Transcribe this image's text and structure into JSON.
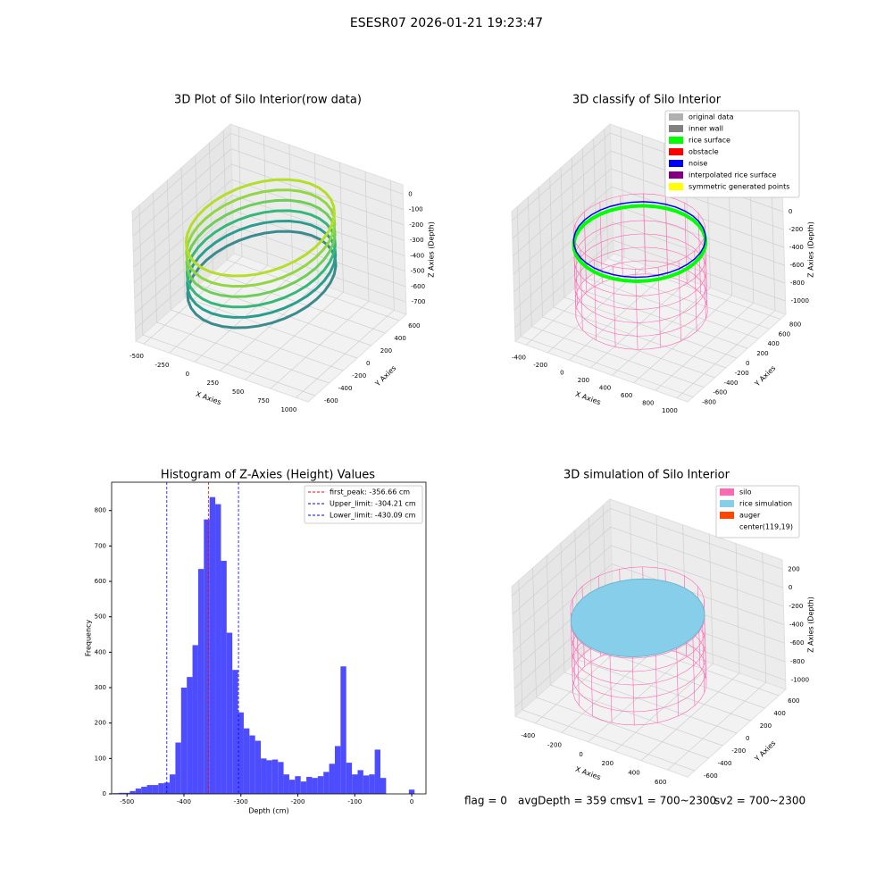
{
  "title": "ESESR07 2026-01-21 19:23:47",
  "chart_data": [
    {
      "type": "scatter3d",
      "title": "3D Plot of Silo Interior(row data)",
      "xlabel": "X Axies",
      "ylabel": "Y Axies",
      "zlabel": "Z Axies (Depth)",
      "xlim": [
        -580,
        1120
      ],
      "ylim": [
        -700,
        700
      ],
      "zlim": [
        -780,
        60
      ],
      "xticks": [
        -500,
        -250,
        0,
        250,
        500,
        750,
        1000
      ],
      "yticks": [
        -600,
        -400,
        -200,
        0,
        200,
        400,
        600
      ],
      "zticks": [
        -700,
        -600,
        -500,
        -400,
        -300,
        -200,
        -100,
        0
      ]
    },
    {
      "type": "scatter3d",
      "title": "3D classify of Silo Interior",
      "xlabel": "X Axies",
      "ylabel": "Y Axies",
      "zlabel": "Z Axies (Depth)",
      "xlim": [
        -500,
        1100
      ],
      "ylim": [
        -900,
        900
      ],
      "zlim": [
        -1150,
        300
      ],
      "xticks": [
        -400,
        -200,
        0,
        200,
        400,
        600,
        800,
        1000
      ],
      "yticks": [
        -800,
        -600,
        -400,
        -200,
        0,
        200,
        400,
        600,
        800
      ],
      "zticks": [
        -1000,
        -800,
        -600,
        -400,
        -200,
        0,
        200
      ],
      "legend": [
        {
          "name": "original data",
          "color": "#b0b0b0"
        },
        {
          "name": "inner wall",
          "color": "#808080"
        },
        {
          "name": "rice surface",
          "color": "#00ff00"
        },
        {
          "name": "obstacle",
          "color": "#ff0000"
        },
        {
          "name": "noise",
          "color": "#0000ff"
        },
        {
          "name": "interpolated rice surface",
          "color": "#800080"
        },
        {
          "name": "symmetric generated points",
          "color": "#ffff00"
        }
      ]
    },
    {
      "type": "histogram",
      "title": "Histogram of Z-Axies (Height) Values",
      "xlabel": "Depth (cm)",
      "ylabel": "Frequency",
      "color": "#4d4dff",
      "bins": [
        -525,
        -515,
        -505,
        -495,
        -485,
        -475,
        -465,
        -455,
        -445,
        -435,
        -425,
        -415,
        -405,
        -395,
        -385,
        -375,
        -365,
        -355,
        -345,
        -335,
        -325,
        -315,
        -305,
        -295,
        -285,
        -275,
        -265,
        -255,
        -245,
        -235,
        -225,
        -215,
        -205,
        -195,
        -185,
        -175,
        -165,
        -155,
        -145,
        -135,
        -125,
        -115,
        -105,
        -95,
        -85,
        -75,
        -65,
        -55,
        -45,
        -35,
        -25,
        -15,
        -5,
        5
      ],
      "counts": [
        2,
        3,
        3,
        8,
        15,
        20,
        25,
        25,
        30,
        32,
        55,
        145,
        300,
        330,
        420,
        635,
        775,
        838,
        818,
        658,
        455,
        350,
        230,
        185,
        165,
        150,
        100,
        95,
        97,
        90,
        55,
        40,
        50,
        35,
        48,
        45,
        50,
        62,
        85,
        135,
        360,
        88,
        55,
        67,
        52,
        55,
        125,
        45,
        0,
        0,
        0,
        0,
        12
      ],
      "xlim": [
        -527,
        25
      ],
      "ylim": [
        0,
        880
      ],
      "xticks": [
        -500,
        -400,
        -300,
        -200,
        -100,
        0
      ],
      "yticks": [
        0,
        100,
        200,
        300,
        400,
        500,
        600,
        700,
        800
      ],
      "lines": [
        {
          "name": "first_peak: -356.66 cm",
          "value": -356.66,
          "color": "#ff0000"
        },
        {
          "name": "Upper_limit: -304.21 cm",
          "value": -304.21,
          "color": "#0000ff"
        },
        {
          "name": "Lower_limit: -430.09 cm",
          "value": -430.09,
          "color": "#0000ff"
        }
      ]
    },
    {
      "type": "scatter3d",
      "title": "3D simulation of Silo Interior",
      "xlabel": "X Axies",
      "ylabel": "Y Axies",
      "zlabel": "Z Axies (Depth)",
      "xlim": [
        -550,
        750
      ],
      "ylim": [
        -700,
        700
      ],
      "zlim": [
        -1100,
        300
      ],
      "xticks": [
        -400,
        -200,
        0,
        200,
        400,
        600
      ],
      "yticks": [
        -600,
        -400,
        -200,
        0,
        200,
        400,
        600
      ],
      "zticks": [
        -1000,
        -800,
        -600,
        -400,
        -200,
        0,
        200
      ],
      "legend": [
        {
          "name": "silo",
          "color": "#ff69b4"
        },
        {
          "name": "rice simulation",
          "color": "#87ceeb"
        },
        {
          "name": "auger",
          "color": "#ff4500"
        },
        {
          "name": "center(119,19)"
        }
      ]
    }
  ],
  "footer": [
    "flag = 0",
    "avgDepth = 359 cm",
    "sv1 = 700~2300",
    "sv2 = 700~2300"
  ]
}
